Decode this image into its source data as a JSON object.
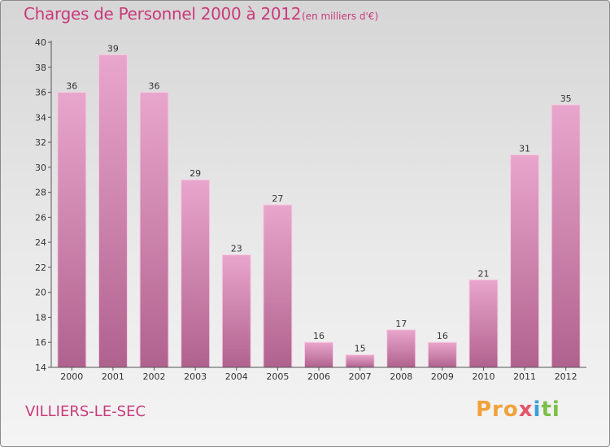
{
  "title": "Charges de Personnel 2000 à 2012",
  "subtitle": "(en milliers d'€)",
  "town": "VILLIERS-LE-SEC",
  "logo": {
    "p1": "Pro",
    "p2": "x",
    "p3": "i",
    "p4": "ti"
  },
  "colors": {
    "bar_top": "#e9a6cc",
    "bar_bottom": "#b0628e",
    "bar_edge": "#f5cde2",
    "title": "#c93a7a"
  },
  "chart_data": {
    "type": "bar",
    "title": "Charges de Personnel 2000 à 2012",
    "subtitle": "(en milliers d'€)",
    "xlabel": "",
    "ylabel": "",
    "categories": [
      "2000",
      "2001",
      "2002",
      "2003",
      "2004",
      "2005",
      "2006",
      "2007",
      "2008",
      "2009",
      "2010",
      "2011",
      "2012"
    ],
    "values": [
      36,
      39,
      36,
      29,
      23,
      27,
      16,
      15,
      17,
      16,
      21,
      31,
      35
    ],
    "ylim": [
      14,
      40
    ],
    "yticks": [
      14,
      16,
      18,
      20,
      22,
      24,
      26,
      28,
      30,
      32,
      34,
      36,
      38,
      40
    ],
    "grid": false,
    "legend": "none"
  }
}
